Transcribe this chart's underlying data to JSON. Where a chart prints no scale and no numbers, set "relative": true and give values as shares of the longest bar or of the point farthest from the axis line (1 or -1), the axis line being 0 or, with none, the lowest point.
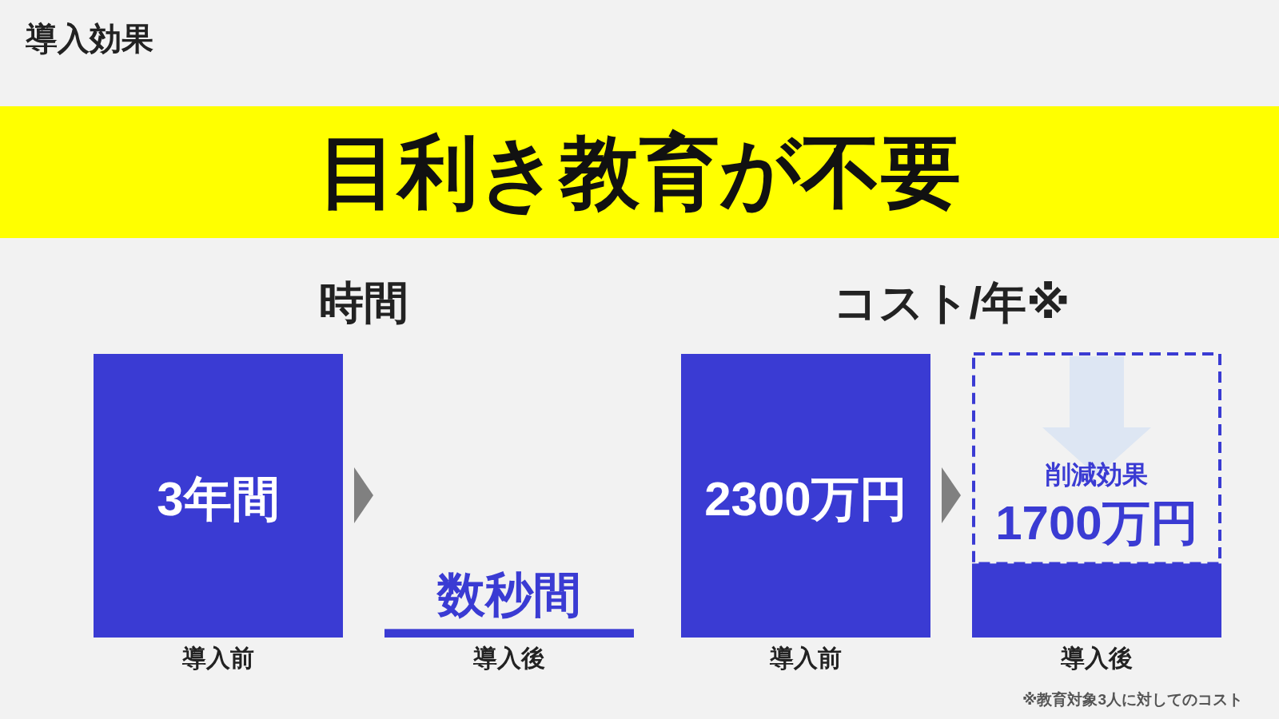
{
  "chart_data": [
    {
      "type": "bar",
      "title": "導入効果",
      "subtitle": "目利き教育が不要",
      "xlabel": "時間",
      "relative": true,
      "categories": [
        "導入前",
        "導入後"
      ],
      "values": [
        1,
        0.03
      ],
      "color": "#3a3bd3",
      "annotations": [
        "3年間",
        "数秒間"
      ]
    },
    {
      "type": "bar",
      "xlabel": "コスト/年※",
      "stacked": true,
      "categories": [
        "導入前",
        "導入後"
      ],
      "series": [
        {
          "color": "#3a3bd3",
          "values": [
            2300,
            600
          ],
          "value_labels": [
            "2300万円",
            null
          ]
        },
        {
          "color": "#3a3bd3",
          "line_style": "dashed",
          "values": [
            null,
            1700
          ],
          "value_labels": [
            null,
            "1700万円"
          ]
        }
      ],
      "annotations": [
        "削減効果",
        "※教育対象3人に対してのコスト"
      ]
    }
  ]
}
